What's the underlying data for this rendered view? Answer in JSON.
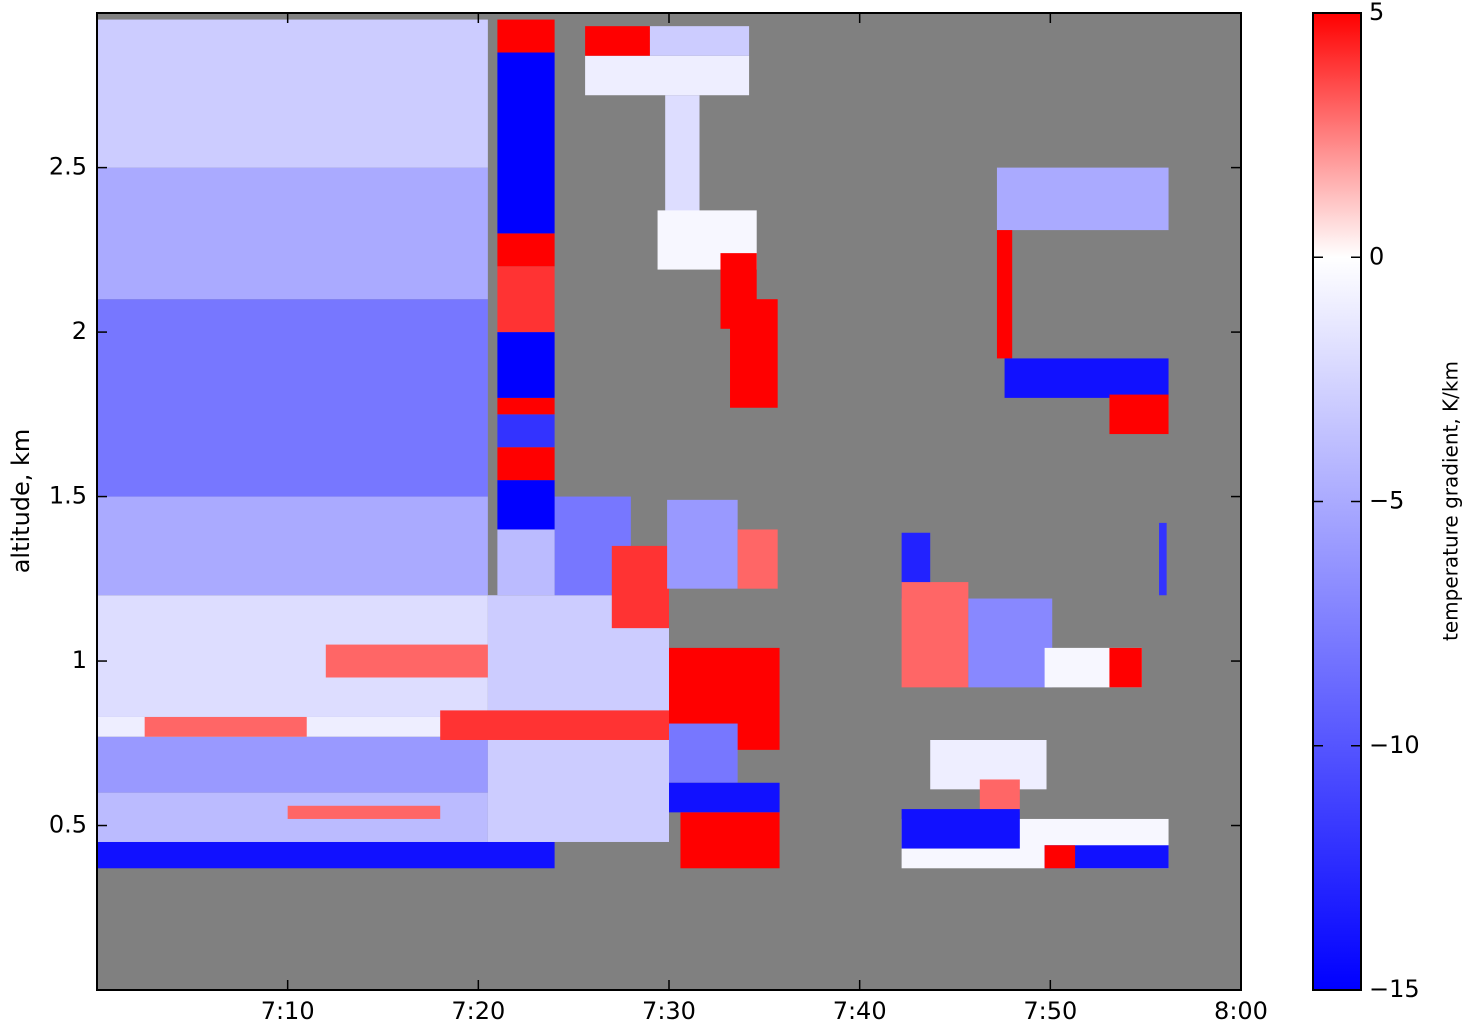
{
  "chart_data": {
    "type": "heatmap",
    "ylabel": "altitude, km",
    "xlim": [
      0,
      60
    ],
    "xticks": [
      {
        "value": 10,
        "label": "7:10"
      },
      {
        "value": 20,
        "label": "7:20"
      },
      {
        "value": 30,
        "label": "7:30"
      },
      {
        "value": 40,
        "label": "7:40"
      },
      {
        "value": 50,
        "label": "7:50"
      },
      {
        "value": 60,
        "label": "8:00"
      }
    ],
    "ylim": [
      0,
      2.97
    ],
    "yticks": [
      0.5,
      1.0,
      1.5,
      2.0,
      2.5
    ],
    "background_color": "#808080",
    "colormap": [
      "#0000ff",
      "#ffffff",
      "#ff0000"
    ],
    "clim": [
      -15,
      5
    ],
    "colorbar_label": "temperature gradient, K/km",
    "colorbar_ticks": [
      {
        "value": -15,
        "label": "−15"
      },
      {
        "value": -10,
        "label": "−10"
      },
      {
        "value": -5,
        "label": "−5"
      },
      0,
      5
    ],
    "cells": [
      {
        "x": [
          0,
          24
        ],
        "y": [
          0.37,
          0.45
        ],
        "value": -14
      },
      {
        "x": [
          0,
          20.5
        ],
        "y": [
          0.45,
          0.6
        ],
        "value": -4
      },
      {
        "x": [
          0,
          20.5
        ],
        "y": [
          0.6,
          0.77
        ],
        "value": -6
      },
      {
        "x": [
          0,
          20.5
        ],
        "y": [
          0.77,
          0.83
        ],
        "value": -1
      },
      {
        "x": [
          0,
          20.5
        ],
        "y": [
          0.83,
          1.2
        ],
        "value": -2
      },
      {
        "x": [
          0,
          20.5
        ],
        "y": [
          1.2,
          1.5
        ],
        "value": -5
      },
      {
        "x": [
          0,
          20.5
        ],
        "y": [
          1.5,
          2.1
        ],
        "value": -8
      },
      {
        "x": [
          0,
          20.5
        ],
        "y": [
          2.1,
          2.5
        ],
        "value": -5
      },
      {
        "x": [
          0,
          20.5
        ],
        "y": [
          2.5,
          2.95
        ],
        "value": -3
      },
      {
        "x": [
          2.5,
          11
        ],
        "y": [
          0.77,
          0.83
        ],
        "value": 3
      },
      {
        "x": [
          12,
          21
        ],
        "y": [
          0.95,
          1.05
        ],
        "value": 3
      },
      {
        "x": [
          10,
          18
        ],
        "y": [
          0.52,
          0.56
        ],
        "value": 3
      },
      {
        "x": [
          20.5,
          30
        ],
        "y": [
          0.45,
          1.2
        ],
        "value": -3
      },
      {
        "x": [
          18,
          30
        ],
        "y": [
          0.76,
          0.85
        ],
        "value": 4
      },
      {
        "x": [
          24,
          28
        ],
        "y": [
          1.2,
          1.5
        ],
        "value": -8
      },
      {
        "x": [
          27,
          30
        ],
        "y": [
          1.1,
          1.35
        ],
        "value": 4
      },
      {
        "x": [
          21,
          24
        ],
        "y": [
          1.2,
          1.4
        ],
        "value": -4
      },
      {
        "x": [
          21,
          24
        ],
        "y": [
          1.4,
          1.55
        ],
        "value": -15
      },
      {
        "x": [
          21,
          24
        ],
        "y": [
          1.55,
          1.65
        ],
        "value": 5
      },
      {
        "x": [
          21,
          24
        ],
        "y": [
          1.65,
          1.75
        ],
        "value": -12
      },
      {
        "x": [
          21,
          24
        ],
        "y": [
          1.75,
          1.8
        ],
        "value": 5
      },
      {
        "x": [
          21,
          24
        ],
        "y": [
          1.8,
          2.0
        ],
        "value": -15
      },
      {
        "x": [
          21,
          24
        ],
        "y": [
          2.0,
          2.2
        ],
        "value": 4
      },
      {
        "x": [
          21,
          24
        ],
        "y": [
          2.2,
          2.3
        ],
        "value": 5
      },
      {
        "x": [
          21,
          24
        ],
        "y": [
          2.3,
          2.85
        ],
        "value": -15
      },
      {
        "x": [
          21,
          24
        ],
        "y": [
          2.85,
          2.95
        ],
        "value": 5
      },
      {
        "x": [
          25.6,
          34.2
        ],
        "y": [
          2.72,
          2.84
        ],
        "value": -1
      },
      {
        "x": [
          25.6,
          29
        ],
        "y": [
          2.84,
          2.93
        ],
        "value": 5
      },
      {
        "x": [
          29,
          34.2
        ],
        "y": [
          2.84,
          2.93
        ],
        "value": -3
      },
      {
        "x": [
          29.8,
          31.6
        ],
        "y": [
          2.28,
          2.72
        ],
        "value": -2
      },
      {
        "x": [
          29.4,
          34.6
        ],
        "y": [
          2.19,
          2.37
        ],
        "value": -0.5
      },
      {
        "x": [
          32.7,
          34.6
        ],
        "y": [
          2.01,
          2.24
        ],
        "value": 5
      },
      {
        "x": [
          33.2,
          35.7
        ],
        "y": [
          1.77,
          2.1
        ],
        "value": 5
      },
      {
        "x": [
          29.9,
          33.6
        ],
        "y": [
          1.22,
          1.49
        ],
        "value": -6
      },
      {
        "x": [
          33.6,
          35.7
        ],
        "y": [
          1.22,
          1.4
        ],
        "value": 3
      },
      {
        "x": [
          30,
          35.8
        ],
        "y": [
          0.73,
          1.04
        ],
        "value": 5
      },
      {
        "x": [
          30,
          33.6
        ],
        "y": [
          0.63,
          0.81
        ],
        "value": -8
      },
      {
        "x": [
          30,
          35.8
        ],
        "y": [
          0.54,
          0.63
        ],
        "value": -14
      },
      {
        "x": [
          30.6,
          35.8
        ],
        "y": [
          0.37,
          0.54
        ],
        "value": 5
      },
      {
        "x": [
          47.2,
          56.2
        ],
        "y": [
          2.31,
          2.5
        ],
        "value": -5
      },
      {
        "x": [
          47.2,
          48
        ],
        "y": [
          1.92,
          2.31
        ],
        "value": 5
      },
      {
        "x": [
          47.6,
          56.2
        ],
        "y": [
          1.8,
          1.92
        ],
        "value": -14
      },
      {
        "x": [
          53.1,
          56.2
        ],
        "y": [
          1.69,
          1.81
        ],
        "value": 5
      },
      {
        "x": [
          42.2,
          43.7
        ],
        "y": [
          1.19,
          1.39
        ],
        "value": -13
      },
      {
        "x": [
          42.2,
          45.7
        ],
        "y": [
          0.92,
          1.24
        ],
        "value": 3
      },
      {
        "x": [
          45.7,
          50.1
        ],
        "y": [
          0.92,
          1.19
        ],
        "value": -7
      },
      {
        "x": [
          49.7,
          54.8
        ],
        "y": [
          0.92,
          1.04
        ],
        "value": -0.5
      },
      {
        "x": [
          53.1,
          54.8
        ],
        "y": [
          0.92,
          1.04
        ],
        "value": 5
      },
      {
        "x": [
          43.7,
          49.8
        ],
        "y": [
          0.61,
          0.76
        ],
        "value": -1
      },
      {
        "x": [
          46.3,
          48.4
        ],
        "y": [
          0.54,
          0.64
        ],
        "value": 3
      },
      {
        "x": [
          42.2,
          56.2
        ],
        "y": [
          0.37,
          0.52
        ],
        "value": -0.5
      },
      {
        "x": [
          42.2,
          48.4
        ],
        "y": [
          0.43,
          0.55
        ],
        "value": -14
      },
      {
        "x": [
          49.7,
          56.2
        ],
        "y": [
          0.37,
          0.44
        ],
        "value": -14
      },
      {
        "x": [
          49.7,
          51.3
        ],
        "y": [
          0.37,
          0.44
        ],
        "value": 5
      },
      {
        "x": [
          55.7,
          56.1
        ],
        "y": [
          1.2,
          1.42
        ],
        "value": -12
      }
    ]
  }
}
